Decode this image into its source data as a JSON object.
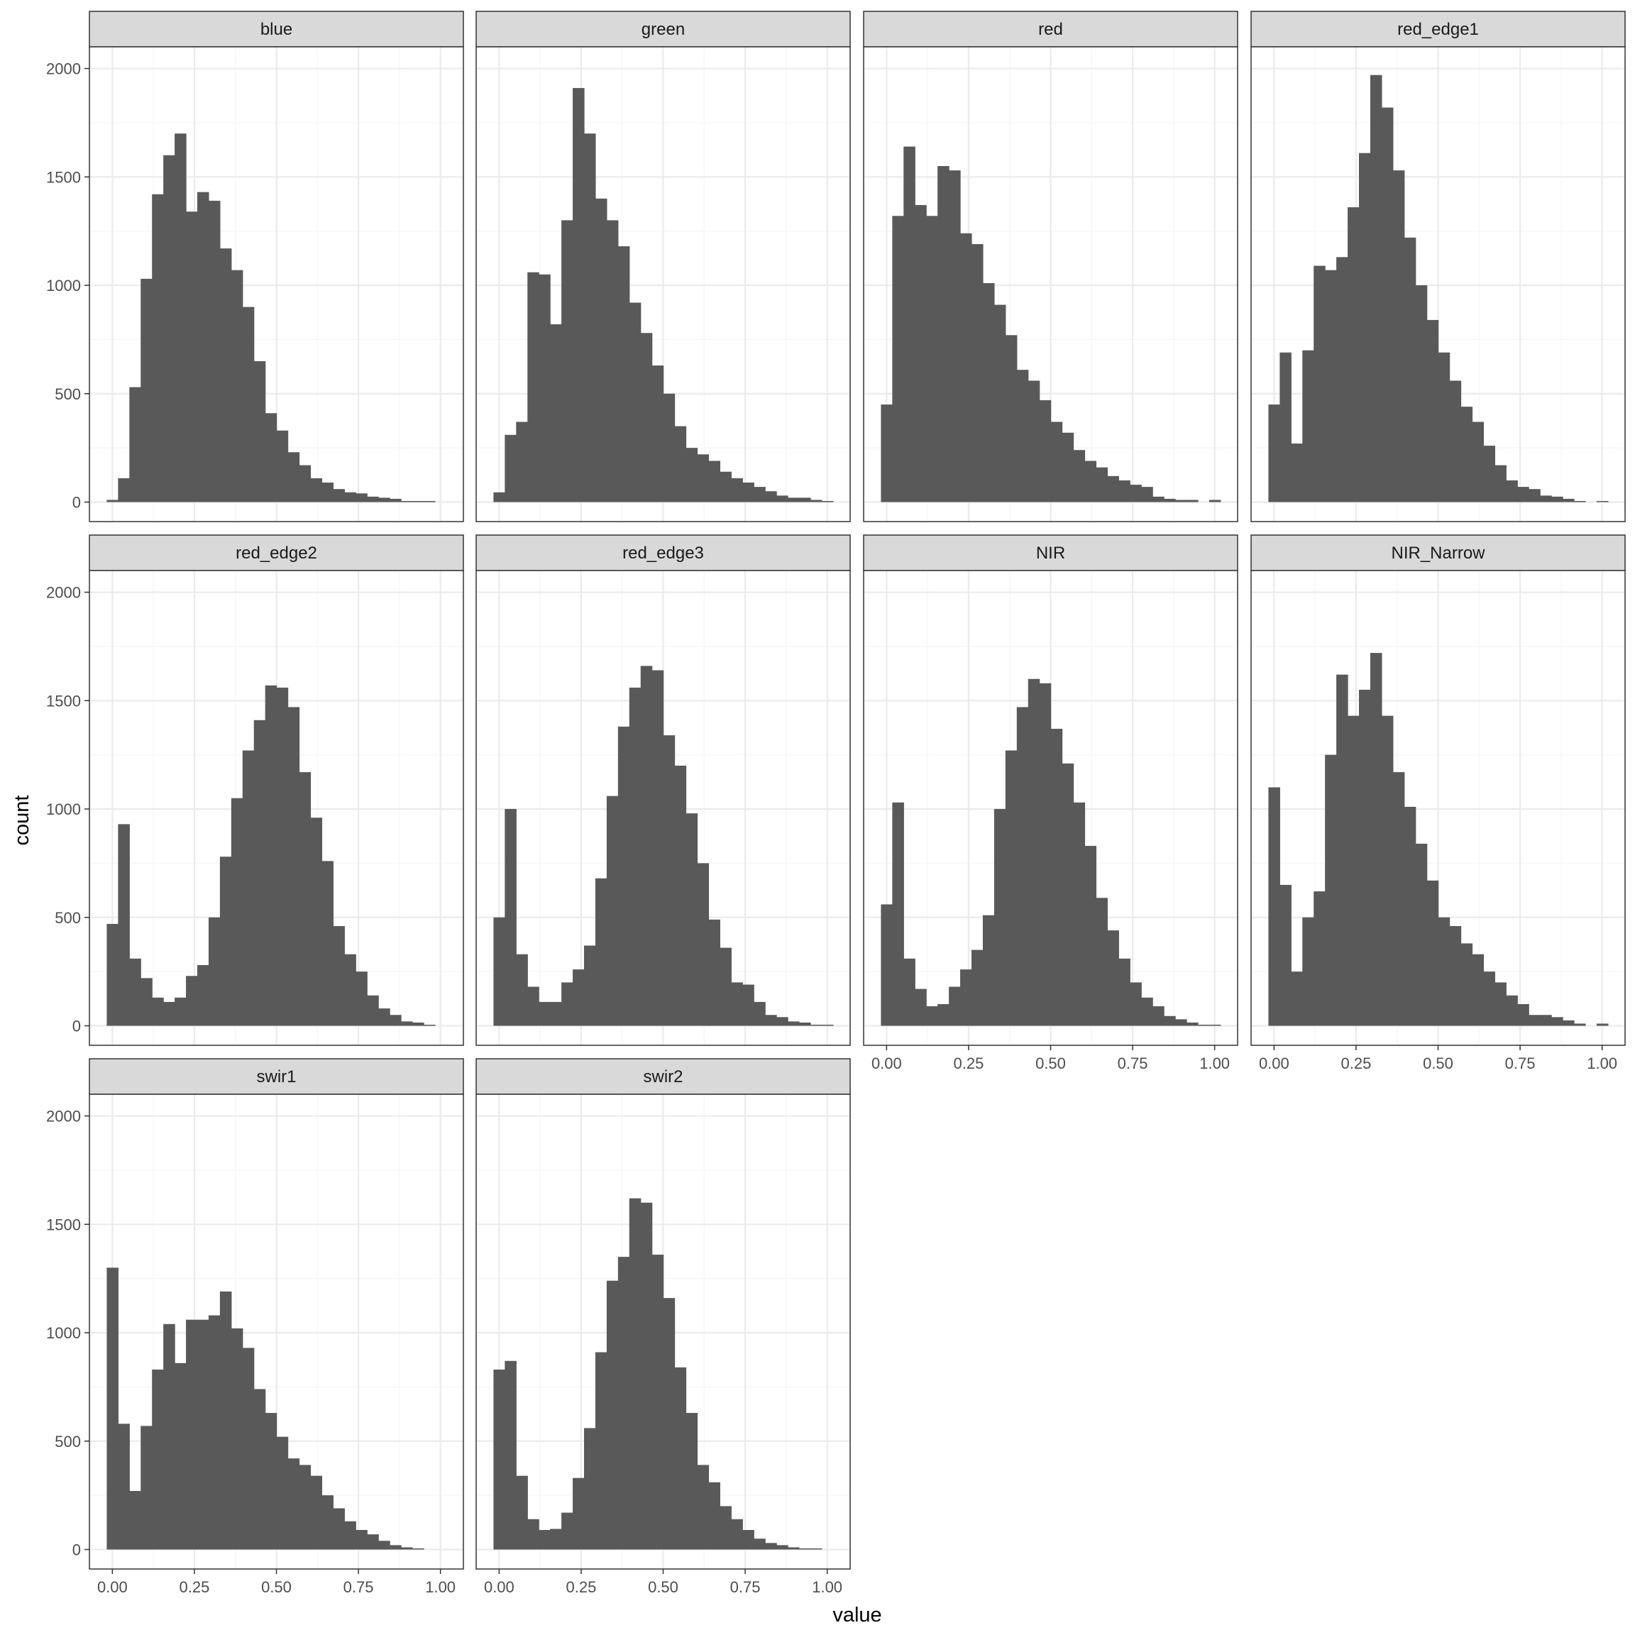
{
  "chart_data": {
    "type": "bar",
    "facet_layout": "wrap 4 columns",
    "xlabel": "value",
    "ylabel": "count",
    "xlim": [
      -0.07,
      1.07
    ],
    "ylim": [
      -90,
      2100
    ],
    "x_ticks": [
      0,
      0.25,
      0.5,
      0.75,
      1
    ],
    "x_tick_labels": [
      "0.00",
      "0.25",
      "0.50",
      "0.75",
      "1.00"
    ],
    "y_ticks": [
      0,
      500,
      1000,
      1500,
      2000
    ],
    "y_tick_labels": [
      "0",
      "500",
      "1000",
      "1500",
      "2000"
    ],
    "bins": 30,
    "bin_start": -0.0172,
    "bin_width": 0.0345,
    "grid": true,
    "colors": {
      "bar": "#595959",
      "strip": "#d9d9d9",
      "grid_major": "#ebebeb",
      "grid_minor": "#f5f5f5",
      "panel_border": "#333333"
    },
    "panels": [
      {
        "name": "blue",
        "values": [
          10,
          110,
          530,
          1030,
          1420,
          1600,
          1700,
          1340,
          1430,
          1390,
          1170,
          1070,
          900,
          650,
          410,
          330,
          230,
          170,
          110,
          90,
          60,
          45,
          40,
          25,
          20,
          15,
          5,
          5,
          5,
          0
        ]
      },
      {
        "name": "green",
        "values": [
          45,
          310,
          370,
          1060,
          1050,
          820,
          1300,
          1910,
          1700,
          1400,
          1300,
          1180,
          920,
          780,
          630,
          500,
          350,
          250,
          220,
          190,
          140,
          110,
          90,
          70,
          50,
          30,
          20,
          20,
          10,
          5
        ]
      },
      {
        "name": "red",
        "values": [
          450,
          1320,
          1640,
          1370,
          1320,
          1550,
          1530,
          1240,
          1190,
          1010,
          910,
          770,
          610,
          560,
          470,
          370,
          320,
          240,
          190,
          160,
          120,
          100,
          80,
          70,
          25,
          15,
          10,
          10,
          0,
          10
        ]
      },
      {
        "name": "red_edge1",
        "values": [
          450,
          690,
          270,
          700,
          1090,
          1070,
          1130,
          1360,
          1610,
          1970,
          1820,
          1530,
          1220,
          1000,
          840,
          690,
          560,
          440,
          370,
          260,
          170,
          100,
          70,
          60,
          30,
          25,
          15,
          5,
          0,
          5
        ]
      },
      {
        "name": "red_edge2",
        "values": [
          470,
          930,
          310,
          220,
          130,
          110,
          130,
          230,
          280,
          500,
          780,
          1050,
          1270,
          1410,
          1570,
          1560,
          1470,
          1170,
          960,
          760,
          460,
          330,
          250,
          140,
          80,
          50,
          20,
          15,
          5,
          0
        ]
      },
      {
        "name": "red_edge3",
        "values": [
          500,
          1000,
          330,
          180,
          110,
          110,
          200,
          260,
          370,
          680,
          1060,
          1380,
          1560,
          1660,
          1640,
          1340,
          1200,
          980,
          750,
          490,
          360,
          200,
          190,
          110,
          50,
          40,
          20,
          15,
          5,
          5
        ]
      },
      {
        "name": "NIR",
        "values": [
          560,
          1030,
          310,
          170,
          90,
          100,
          180,
          260,
          350,
          510,
          1000,
          1270,
          1470,
          1600,
          1580,
          1370,
          1210,
          1030,
          830,
          590,
          440,
          310,
          200,
          130,
          90,
          45,
          30,
          15,
          5,
          5
        ]
      },
      {
        "name": "NIR_Narrow",
        "values": [
          1100,
          650,
          250,
          500,
          620,
          1250,
          1620,
          1430,
          1550,
          1720,
          1430,
          1170,
          1010,
          840,
          670,
          500,
          460,
          380,
          330,
          250,
          200,
          140,
          100,
          50,
          50,
          40,
          25,
          10,
          0,
          10
        ]
      },
      {
        "name": "swir1",
        "values": [
          1300,
          580,
          270,
          570,
          830,
          1040,
          860,
          1060,
          1060,
          1080,
          1190,
          1020,
          930,
          740,
          630,
          520,
          420,
          390,
          340,
          250,
          190,
          130,
          90,
          70,
          40,
          20,
          10,
          5,
          0,
          0
        ]
      },
      {
        "name": "swir2",
        "values": [
          830,
          870,
          340,
          140,
          90,
          95,
          170,
          330,
          560,
          910,
          1240,
          1350,
          1620,
          1600,
          1360,
          1160,
          840,
          630,
          390,
          310,
          200,
          140,
          90,
          50,
          30,
          20,
          10,
          5,
          5,
          0
        ]
      }
    ]
  }
}
